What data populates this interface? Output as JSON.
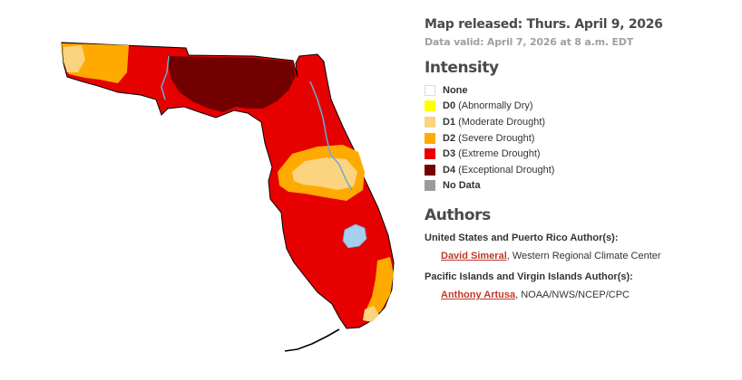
{
  "released": "Map released: Thurs. April 9, 2026",
  "valid": "Data valid: April 7, 2026 at 8 a.m. EDT",
  "intensity": {
    "heading": "Intensity",
    "items": [
      {
        "code": "None",
        "desc": "",
        "color": "#ffffff",
        "border": "#dddddd"
      },
      {
        "code": "D0",
        "desc": "(Abnormally Dry)",
        "color": "#ffff00",
        "border": "#ffff00"
      },
      {
        "code": "D1",
        "desc": "(Moderate Drought)",
        "color": "#fcd37f",
        "border": "#fcd37f"
      },
      {
        "code": "D2",
        "desc": "(Severe Drought)",
        "color": "#ffaa00",
        "border": "#ffaa00"
      },
      {
        "code": "D3",
        "desc": "(Extreme Drought)",
        "color": "#e60000",
        "border": "#e60000"
      },
      {
        "code": "D4",
        "desc": "(Exceptional Drought)",
        "color": "#730000",
        "border": "#730000"
      },
      {
        "code": "No Data",
        "desc": "",
        "color": "#9b9b9b",
        "border": "#9b9b9b"
      }
    ]
  },
  "authors": {
    "heading": "Authors",
    "groups": [
      {
        "title": "United States and Puerto Rico Author(s):",
        "name": "David Simeral",
        "affiliation": ", Western Regional Climate Center"
      },
      {
        "title": "Pacific Islands and Virgin Islands Author(s):",
        "name": "Anthony Artusa",
        "affiliation": ", NOAA/NWS/NCEP/CPC"
      }
    ]
  },
  "map": {
    "region": "Florida",
    "colors": {
      "d1": "#fcd37f",
      "d2": "#ffaa00",
      "d3": "#e60000",
      "d4": "#730000",
      "water": "#a6cfee",
      "outline": "#000000"
    }
  }
}
